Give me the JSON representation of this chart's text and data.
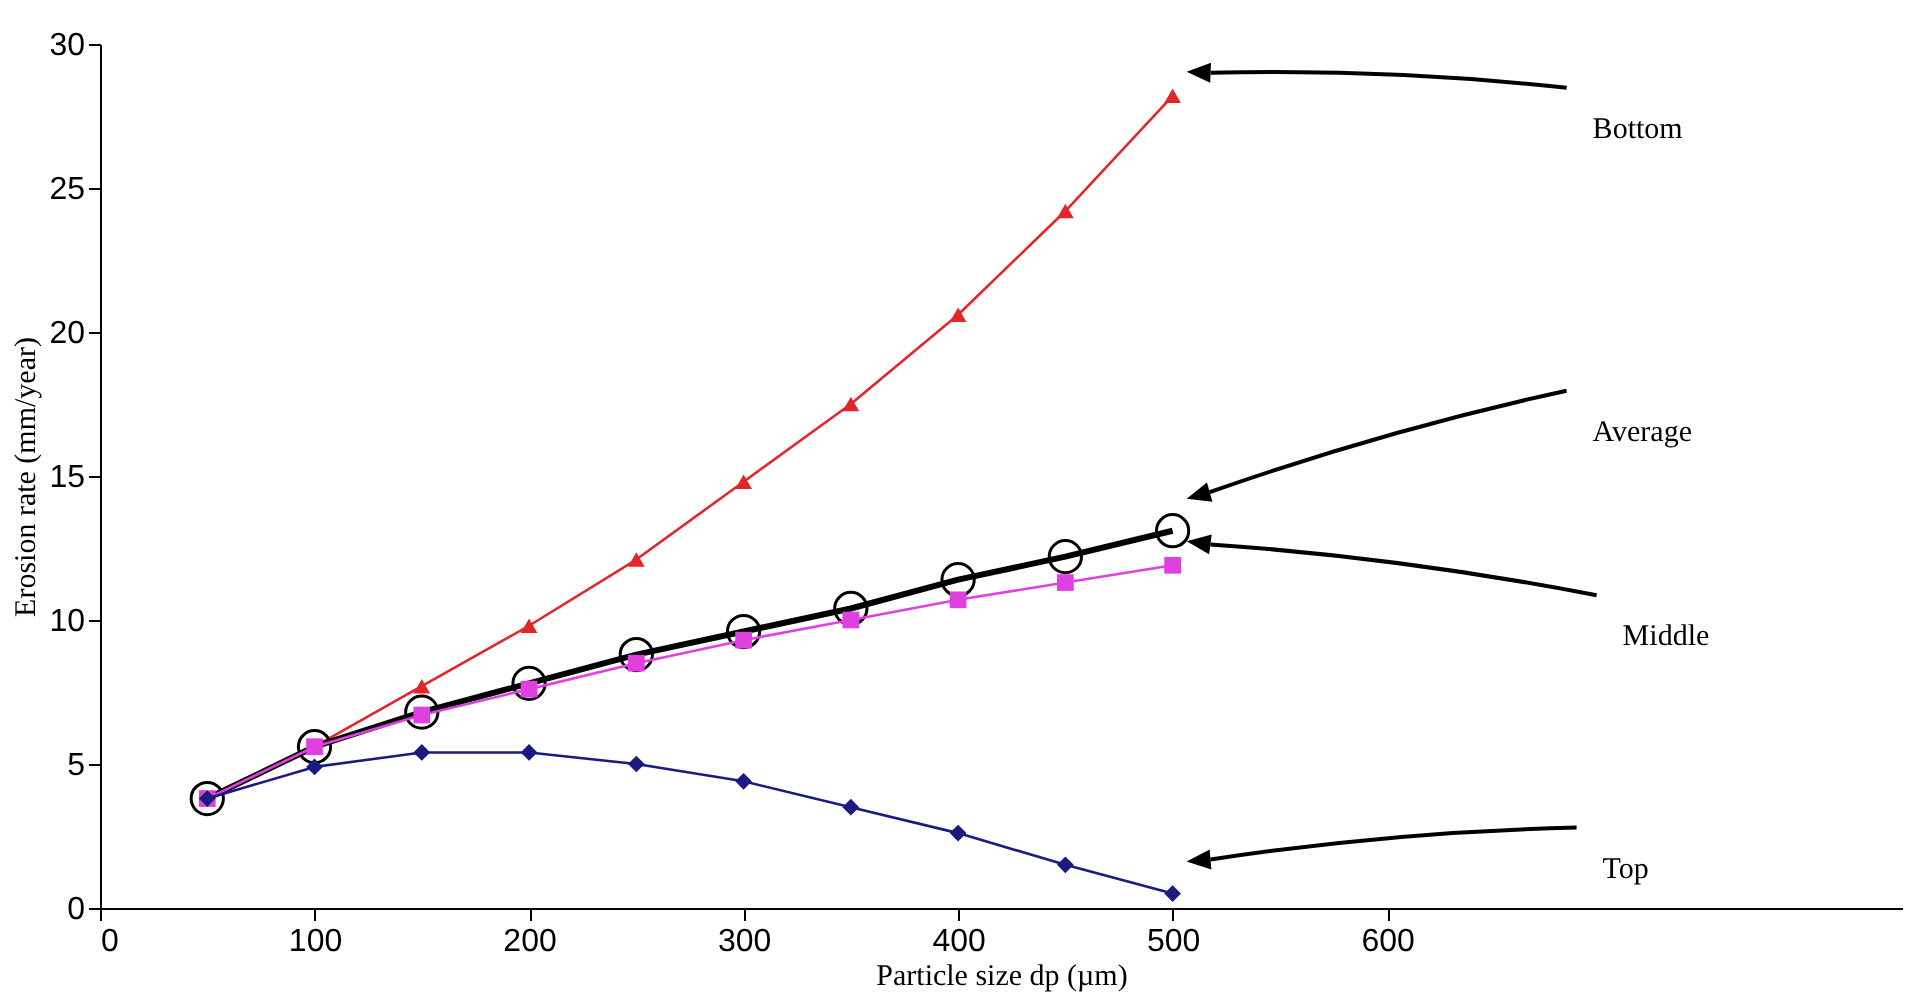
{
  "chart_data": {
    "type": "line",
    "xlabel": "Particle size dp (µm)",
    "ylabel": "Erosion rate (mm/year)",
    "x": [
      50,
      100,
      150,
      200,
      250,
      300,
      350,
      400,
      450,
      500
    ],
    "series": [
      {
        "name": "Bottom",
        "color": "#e3262a",
        "marker": "triangle",
        "values": [
          3.8,
          5.6,
          7.7,
          9.8,
          12.1,
          14.8,
          17.5,
          20.6,
          24.2,
          28.2
        ]
      },
      {
        "name": "Average",
        "color": "#000000",
        "marker": "circle",
        "values": [
          3.8,
          5.6,
          6.8,
          7.8,
          8.8,
          9.6,
          10.4,
          11.4,
          12.2,
          13.1
        ]
      },
      {
        "name": "Middle",
        "color": "#e040e0",
        "marker": "square",
        "values": [
          3.8,
          5.6,
          6.7,
          7.6,
          8.5,
          9.3,
          10.0,
          10.7,
          11.3,
          11.9
        ]
      },
      {
        "name": "Top",
        "color": "#1a1a80",
        "marker": "diamond",
        "values": [
          3.8,
          4.9,
          5.4,
          5.4,
          5.0,
          4.4,
          3.5,
          2.6,
          1.5,
          0.5
        ]
      }
    ],
    "xlim": [
      0,
      840
    ],
    "xticks": [
      0,
      100,
      200,
      300,
      400,
      500,
      600
    ],
    "ylim": [
      0,
      30
    ],
    "yticks": [
      0,
      5,
      10,
      15,
      20,
      25,
      30
    ],
    "grid": false,
    "legend": false
  }
}
